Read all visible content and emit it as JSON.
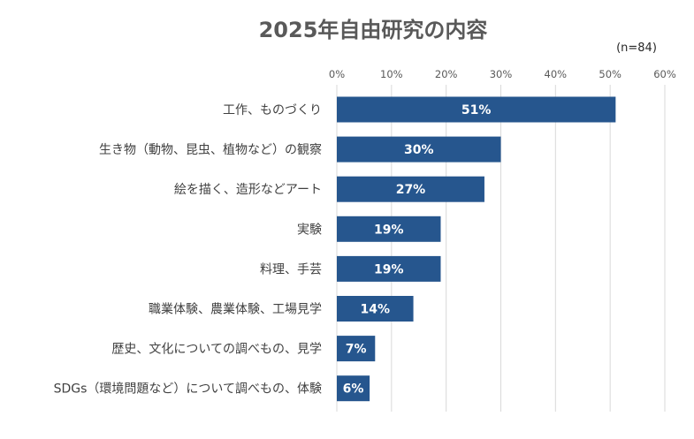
{
  "chart_data": {
    "type": "bar",
    "orientation": "horizontal",
    "title": "2025年自由研究の内容",
    "note": "(n=84)",
    "xlabel": "",
    "ylabel": "",
    "xlim": [
      0,
      60
    ],
    "x_ticks": [
      "0%",
      "10%",
      "20%",
      "30%",
      "40%",
      "50%",
      "60%"
    ],
    "x_tick_values": [
      0,
      10,
      20,
      30,
      40,
      50,
      60
    ],
    "grid": "vertical",
    "categories": [
      "工作、ものづくり",
      "生き物（動物、昆虫、植物など）の観察",
      "絵を描く、造形などアート",
      "実験",
      "料理、手芸",
      "職業体験、農業体験、工場見学",
      "歴史、文化についての調べもの、見学",
      "SDGs（環境問題など）について調べもの、体験"
    ],
    "values": [
      51,
      30,
      27,
      19,
      19,
      14,
      7,
      6
    ],
    "value_labels": [
      "51%",
      "30%",
      "27%",
      "19%",
      "19%",
      "14%",
      "7%",
      "6%"
    ],
    "colors": {
      "bar": "#26568e",
      "bar_label": "#ffffff",
      "title": "#595959",
      "category_text": "#404040",
      "tick_text": "#595959",
      "grid": "#d9d9d9"
    }
  }
}
